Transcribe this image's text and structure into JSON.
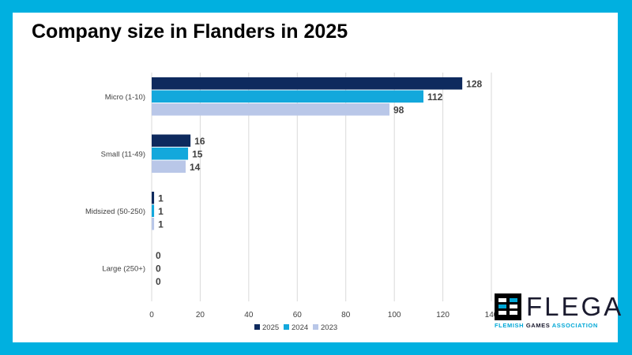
{
  "title": "Company size in Flanders in 2025",
  "chart_data": {
    "type": "bar",
    "orientation": "horizontal",
    "categories": [
      "Micro (1-10)",
      "Small (11-49)",
      "Midsized (50-250)",
      "Large (250+)"
    ],
    "series": [
      {
        "name": "2025",
        "values": [
          128,
          16,
          1,
          0
        ],
        "color": "#0e2a5e"
      },
      {
        "name": "2024",
        "values": [
          112,
          15,
          1,
          0
        ],
        "color": "#13a8dc"
      },
      {
        "name": "2023",
        "values": [
          98,
          14,
          1,
          0
        ],
        "color": "#b9c7e8"
      }
    ],
    "xlim": [
      0,
      140
    ],
    "xticks": [
      0,
      20,
      40,
      60,
      80,
      100,
      120,
      140
    ],
    "grid": true,
    "legend_position": "bottom"
  },
  "logo": {
    "word": "FLEGA",
    "sub_left": "FLEMISH ",
    "sub_mid": "GAMES",
    "sub_right": " ASSOCIATION"
  },
  "colors": {
    "frame": "#00b0e0",
    "text": "#404040",
    "gridline": "#d9d9d9"
  }
}
